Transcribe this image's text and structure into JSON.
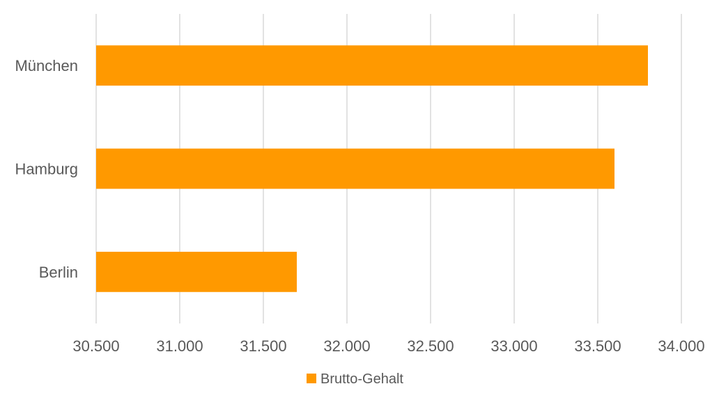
{
  "chart_data": {
    "type": "bar",
    "orientation": "horizontal",
    "categories": [
      "München",
      "Hamburg",
      "Berlin"
    ],
    "series": [
      {
        "name": "Brutto-Gehalt",
        "values": [
          33800,
          33600,
          31700
        ],
        "color": "#FF9900"
      }
    ],
    "xlim": [
      30500,
      34000
    ],
    "x_ticks": [
      30500,
      31000,
      31500,
      32000,
      32500,
      33000,
      33500,
      34000
    ],
    "x_tick_labels": [
      "30.500",
      "31.000",
      "31.500",
      "32.000",
      "32.500",
      "33.000",
      "33.500",
      "34.000"
    ],
    "grid": true,
    "grid_color": "#D9D9D9",
    "legend_position": "bottom"
  }
}
